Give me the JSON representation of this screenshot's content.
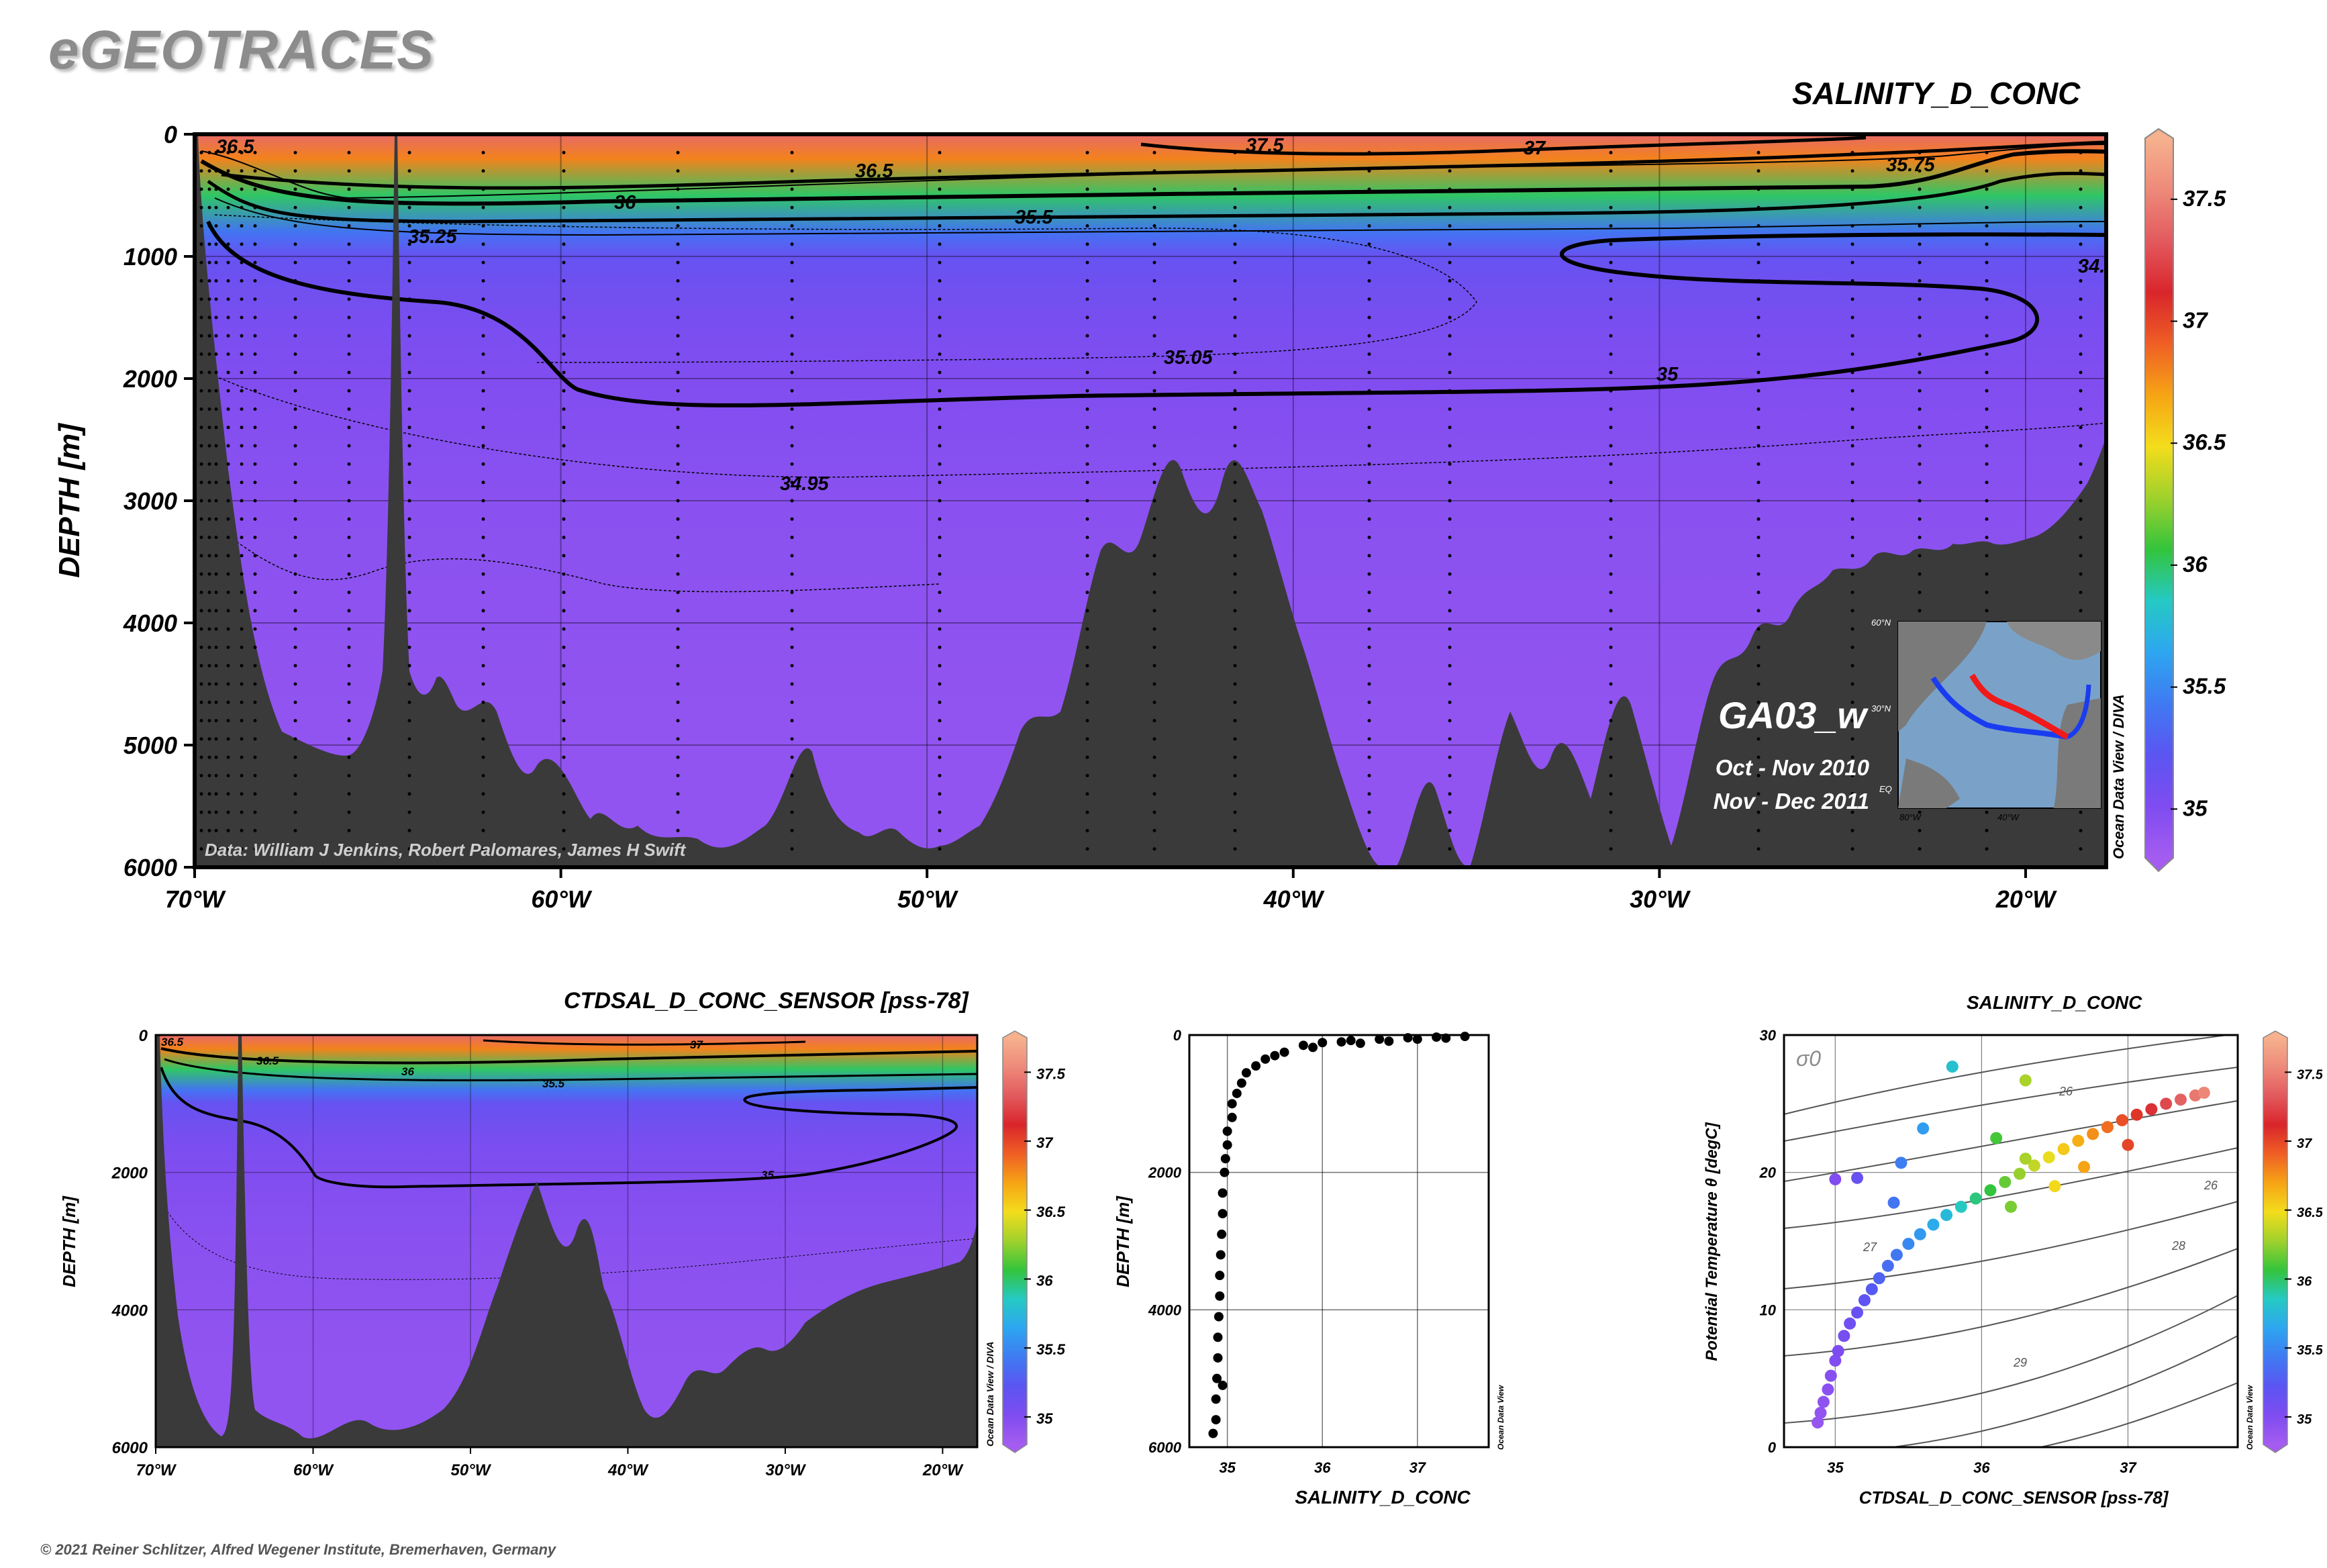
{
  "app": {
    "logo": "eGEOTRACES",
    "copyright": "© 2021 Reiner Schlitzer, Alfred Wegener Institute, Bremerhaven, Germany"
  },
  "colors": {
    "ramp": [
      "#a45cf0",
      "#7f4cf0",
      "#5b55f2",
      "#3f7af2",
      "#2da6f0",
      "#25c9c4",
      "#33c43c",
      "#9fd12c",
      "#f3dd1c",
      "#f6a414",
      "#ef5f25",
      "#d9252b",
      "#e25a5e",
      "#ee8a7a",
      "#f6b18e"
    ],
    "bathymetry": "#3a3a3a",
    "ts_points": [
      "#8a4fe0",
      "#4a6af0",
      "#2ab3e6",
      "#3cc25a",
      "#a7d12a",
      "#f4d21a",
      "#f59a17",
      "#e63a2a",
      "#d42835",
      "#e06a66",
      "#f0a088"
    ]
  },
  "main_section": {
    "title": "SALINITY_D_CONC",
    "ylabel": "DEPTH [m]",
    "credit": "Data: William J Jenkins, Robert Palomares, James H Swift",
    "cruise": "GA03_w",
    "dates": [
      "Oct - Nov 2010",
      "Nov - Dec 2011"
    ],
    "vertical_label": "Ocean Data View / DIVA",
    "inset_labels": [
      "60°N",
      "30°N",
      "EQ",
      "80°W",
      "40°W"
    ]
  },
  "small_section": {
    "title": "CTDSAL_D_CONC_SENSOR [pss-78]",
    "ylabel": "DEPTH [m]",
    "vertical_label": "Ocean Data View / DIVA"
  },
  "profile": {
    "ylabel": "DEPTH [m]",
    "xlabel": "SALINITY_D_CONC",
    "vertical_label": "Ocean Data View"
  },
  "ts_plot": {
    "title": "SALINITY_D_CONC",
    "ylabel": "Potential Temperature θ [degC]",
    "xlabel": "CTDSAL_D_CONC_SENSOR [pss-78]",
    "sigma_label": "σ0",
    "vertical_label": "Ocean Data View"
  },
  "chart_data": [
    {
      "type": "heatmap",
      "title": "SALINITY_D_CONC",
      "xlabel": "",
      "ylabel": "DEPTH [m]",
      "x_ticks": [
        "70°W",
        "60°W",
        "50°W",
        "40°W",
        "30°W",
        "20°W"
      ],
      "y_ticks": [
        "0",
        "1000",
        "2000",
        "3000",
        "4000",
        "5000",
        "6000"
      ],
      "xlim": [
        -70,
        -17.8
      ],
      "ylim": [
        6000,
        0
      ],
      "contour_levels_labeled": [
        "36.5",
        "37.5",
        "37",
        "36.5",
        "36",
        "35.75",
        "35.5",
        "35.25",
        "35.05",
        "35",
        "34.95",
        "34."
      ],
      "colorbar": {
        "ticks": [
          "37.5",
          "37",
          "36.5",
          "36",
          "35.5",
          "35"
        ],
        "range": [
          34.8,
          37.75
        ]
      },
      "depth_profile_salinity": {
        "depth": [
          0,
          200,
          500,
          800,
          1000,
          1500,
          2000,
          3000,
          5000
        ],
        "salinity": [
          37.4,
          36.8,
          36.0,
          35.4,
          35.15,
          35.05,
          35.0,
          34.95,
          34.9
        ]
      }
    },
    {
      "type": "heatmap",
      "title": "CTDSAL_D_CONC_SENSOR [pss-78]",
      "ylabel": "DEPTH [m]",
      "x_ticks": [
        "70°W",
        "60°W",
        "50°W",
        "40°W",
        "30°W",
        "20°W"
      ],
      "y_ticks": [
        "0",
        "2000",
        "4000",
        "6000"
      ],
      "xlim": [
        -70,
        -17.8
      ],
      "ylim": [
        6000,
        0
      ],
      "contour_labels": [
        "36.5",
        "36.5",
        "36",
        "35.5",
        "37",
        "35"
      ],
      "colorbar": {
        "ticks": [
          "37.5",
          "37",
          "36.5",
          "36",
          "35.5",
          "35"
        ],
        "range": [
          34.8,
          37.75
        ]
      }
    },
    {
      "type": "scatter",
      "xlabel": "SALINITY_D_CONC",
      "ylabel": "DEPTH [m]",
      "x_ticks": [
        "35",
        "36",
        "37"
      ],
      "y_ticks": [
        "0",
        "2000",
        "4000",
        "6000"
      ],
      "xlim": [
        34.6,
        37.75
      ],
      "ylim": [
        6000,
        0
      ],
      "grid": true,
      "points": [
        [
          37.5,
          20
        ],
        [
          37.2,
          30
        ],
        [
          36.9,
          40
        ],
        [
          36.6,
          60
        ],
        [
          36.3,
          80
        ],
        [
          36.0,
          110
        ],
        [
          35.8,
          150
        ],
        [
          36.4,
          120
        ],
        [
          37.0,
          60
        ],
        [
          36.7,
          90
        ],
        [
          35.6,
          250
        ],
        [
          35.4,
          350
        ],
        [
          35.3,
          450
        ],
        [
          35.2,
          550
        ],
        [
          35.15,
          700
        ],
        [
          35.1,
          850
        ],
        [
          35.05,
          1000
        ],
        [
          35.05,
          1200
        ],
        [
          35.0,
          1400
        ],
        [
          35.0,
          1600
        ],
        [
          34.98,
          1800
        ],
        [
          34.97,
          2000
        ],
        [
          34.95,
          2300
        ],
        [
          34.95,
          2600
        ],
        [
          34.94,
          2900
        ],
        [
          34.93,
          3200
        ],
        [
          34.92,
          3500
        ],
        [
          34.92,
          3800
        ],
        [
          34.91,
          4100
        ],
        [
          34.9,
          4400
        ],
        [
          34.9,
          4700
        ],
        [
          34.89,
          5000
        ],
        [
          34.88,
          5300
        ],
        [
          34.88,
          5600
        ],
        [
          34.95,
          5100
        ],
        [
          34.85,
          5800
        ],
        [
          36.2,
          100
        ],
        [
          35.9,
          180
        ],
        [
          37.3,
          45
        ],
        [
          35.5,
          300
        ]
      ]
    },
    {
      "type": "scatter",
      "title": "SALINITY_D_CONC",
      "xlabel": "CTDSAL_D_CONC_SENSOR [pss-78]",
      "ylabel": "Potential Temperature θ [degC]",
      "x_ticks": [
        "35",
        "36",
        "37"
      ],
      "y_ticks": [
        "0",
        "10",
        "20",
        "30"
      ],
      "xlim": [
        34.65,
        37.75
      ],
      "ylim": [
        0,
        30
      ],
      "density_labels": [
        "26",
        "27",
        "28",
        "29"
      ],
      "colorbar": {
        "ticks": [
          "37.5",
          "37",
          "36.5",
          "36",
          "35.5",
          "35"
        ],
        "range": [
          34.8,
          37.75
        ]
      },
      "points": [
        [
          34.88,
          1.8
        ],
        [
          34.9,
          2.5
        ],
        [
          34.92,
          3.3
        ],
        [
          34.95,
          4.2
        ],
        [
          34.97,
          5.2
        ],
        [
          35.0,
          6.3
        ],
        [
          35.02,
          7.0
        ],
        [
          35.06,
          8.1
        ],
        [
          35.1,
          9.0
        ],
        [
          35.15,
          9.8
        ],
        [
          35.2,
          10.7
        ],
        [
          35.25,
          11.5
        ],
        [
          35.3,
          12.3
        ],
        [
          35.36,
          13.2
        ],
        [
          35.42,
          14.0
        ],
        [
          35.5,
          14.8
        ],
        [
          35.58,
          15.5
        ],
        [
          35.67,
          16.2
        ],
        [
          35.76,
          16.9
        ],
        [
          35.86,
          17.5
        ],
        [
          35.96,
          18.1
        ],
        [
          36.06,
          18.7
        ],
        [
          36.16,
          19.3
        ],
        [
          36.26,
          19.9
        ],
        [
          36.36,
          20.5
        ],
        [
          36.46,
          21.1
        ],
        [
          36.56,
          21.7
        ],
        [
          36.66,
          22.3
        ],
        [
          36.76,
          22.8
        ],
        [
          36.86,
          23.3
        ],
        [
          36.96,
          23.8
        ],
        [
          37.06,
          24.2
        ],
        [
          37.16,
          24.6
        ],
        [
          37.26,
          25.0
        ],
        [
          37.36,
          25.3
        ],
        [
          37.46,
          25.6
        ],
        [
          37.52,
          25.8
        ],
        [
          35.8,
          27.7
        ],
        [
          36.3,
          26.7
        ],
        [
          35.6,
          23.2
        ],
        [
          35.0,
          19.5
        ],
        [
          35.15,
          19.6
        ],
        [
          35.45,
          20.7
        ],
        [
          36.1,
          22.5
        ],
        [
          36.3,
          21.0
        ],
        [
          36.5,
          19.0
        ],
        [
          36.2,
          17.5
        ],
        [
          35.4,
          17.8
        ],
        [
          36.7,
          20.4
        ],
        [
          37.0,
          22.0
        ]
      ]
    }
  ]
}
